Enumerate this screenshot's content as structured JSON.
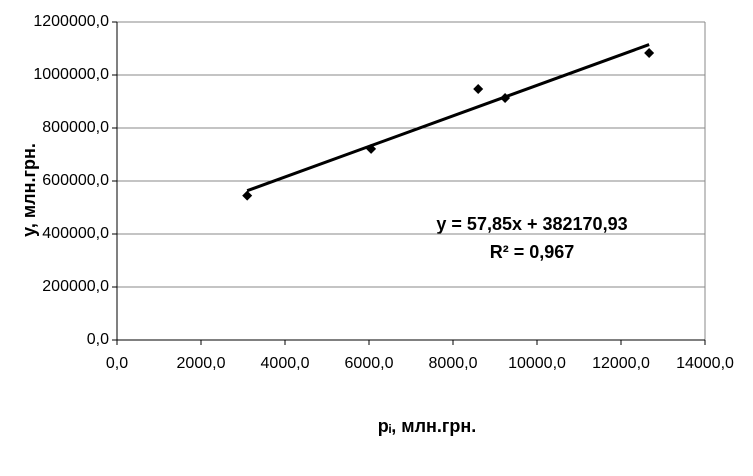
{
  "chart_data": {
    "type": "scatter",
    "x_label": "pᵢ, млн.грн.",
    "y_label": "y, млн.грн.",
    "series": [
      {
        "color": "#000000",
        "x": [
          3100,
          6050,
          8600,
          9240,
          12670
        ],
        "values": [
          545000,
          721000,
          947000,
          913000,
          1083000
        ]
      }
    ],
    "trendline": {
      "equation": "y = 57,85x + 382170,93",
      "r2": "R² = 0,967",
      "color": "#000000"
    },
    "xlim": [
      0,
      14000
    ],
    "xticks": [
      {
        "value": 0,
        "label": "0,0"
      },
      {
        "value": 2000,
        "label": "2000,0"
      },
      {
        "value": 4000,
        "label": "4000,0"
      },
      {
        "value": 6000,
        "label": "6000,0"
      },
      {
        "value": 8000,
        "label": "8000,0"
      },
      {
        "value": 10000,
        "label": "10000,0"
      },
      {
        "value": 12000,
        "label": "12000,0"
      },
      {
        "value": 14000,
        "label": "14000,0"
      }
    ],
    "ylim": [
      0,
      1200000
    ],
    "yticks": [
      {
        "value": 0,
        "label": "0,0"
      },
      {
        "value": 200000,
        "label": "200000,0"
      },
      {
        "value": 400000,
        "label": "400000,0"
      },
      {
        "value": 600000,
        "label": "600000,0"
      },
      {
        "value": 800000,
        "label": "800000,0"
      },
      {
        "value": 1000000,
        "label": "1000000,0"
      },
      {
        "value": 1200000,
        "label": "1200000,0"
      }
    ],
    "grid": true
  }
}
